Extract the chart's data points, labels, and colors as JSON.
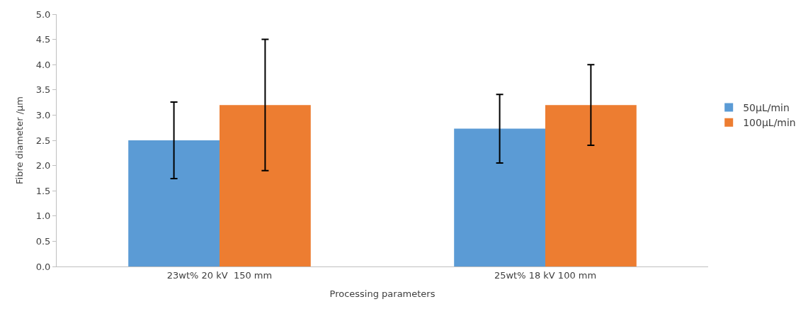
{
  "chart_data": {
    "type": "bar",
    "xlabel": "Processing parameters",
    "ylabel": "Fibre diameter /µm",
    "categories": [
      "23wt% 20 kV  150 mm",
      "25wt% 18 kV 100 mm"
    ],
    "series": [
      {
        "name": "50µL/min",
        "color": "#5b9bd5",
        "values": [
          2.5,
          2.73
        ],
        "errors": [
          0.76,
          0.68
        ]
      },
      {
        "name": "100µL/min",
        "color": "#ed7d31",
        "values": [
          3.2,
          3.2
        ],
        "errors": [
          1.3,
          0.8
        ]
      }
    ],
    "ylim": [
      0,
      5
    ],
    "yticks": [
      {
        "value": 0,
        "label": "0.0"
      },
      0.5,
      {
        "value": 1,
        "label": "1.0"
      },
      1.5,
      {
        "value": 2,
        "label": "2.0"
      },
      2.5,
      {
        "value": 3,
        "label": "3.0"
      },
      3.5,
      {
        "value": 4,
        "label": "4.0"
      },
      4.5,
      {
        "value": 5,
        "label": "5.0"
      }
    ],
    "grid": false,
    "legend": "right"
  }
}
